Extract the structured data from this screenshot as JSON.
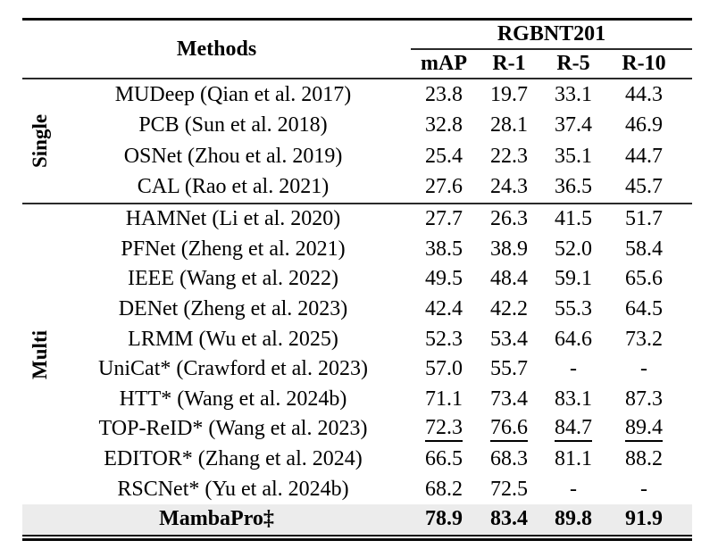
{
  "table": {
    "header": {
      "methods_label": "Methods",
      "dataset": "RGBNT201",
      "metrics": [
        "mAP",
        "R-1",
        "R-5",
        "R-10"
      ]
    },
    "groups": [
      {
        "label": "Single",
        "rows": [
          {
            "method": "MUDeep (Qian et al. 2017)",
            "values": [
              "23.8",
              "19.7",
              "33.1",
              "44.3"
            ],
            "underline": false
          },
          {
            "method": "PCB (Sun et al. 2018)",
            "values": [
              "32.8",
              "28.1",
              "37.4",
              "46.9"
            ],
            "underline": false
          },
          {
            "method": "OSNet (Zhou et al. 2019)",
            "values": [
              "25.4",
              "22.3",
              "35.1",
              "44.7"
            ],
            "underline": false
          },
          {
            "method": "CAL (Rao et al. 2021)",
            "values": [
              "27.6",
              "24.3",
              "36.5",
              "45.7"
            ],
            "underline": false
          }
        ]
      },
      {
        "label": "Multi",
        "rows": [
          {
            "method": "HAMNet (Li et al. 2020)",
            "values": [
              "27.7",
              "26.3",
              "41.5",
              "51.7"
            ],
            "underline": false
          },
          {
            "method": "PFNet (Zheng et al. 2021)",
            "values": [
              "38.5",
              "38.9",
              "52.0",
              "58.4"
            ],
            "underline": false
          },
          {
            "method": "IEEE (Wang et al. 2022)",
            "values": [
              "49.5",
              "48.4",
              "59.1",
              "65.6"
            ],
            "underline": false
          },
          {
            "method": "DENet (Zheng et al. 2023)",
            "values": [
              "42.4",
              "42.2",
              "55.3",
              "64.5"
            ],
            "underline": false
          },
          {
            "method": "LRMM (Wu et al. 2025)",
            "values": [
              "52.3",
              "53.4",
              "64.6",
              "73.2"
            ],
            "underline": false
          },
          {
            "method": "UniCat* (Crawford et al. 2023)",
            "values": [
              "57.0",
              "55.7",
              "-",
              "-"
            ],
            "underline": false
          },
          {
            "method": "HTT* (Wang et al. 2024b)",
            "values": [
              "71.1",
              "73.4",
              "83.1",
              "87.3"
            ],
            "underline": false
          },
          {
            "method": "TOP-ReID* (Wang et al. 2023)",
            "values": [
              "72.3",
              "76.6",
              "84.7",
              "89.4"
            ],
            "underline": true
          },
          {
            "method": "EDITOR* (Zhang et al. 2024)",
            "values": [
              "66.5",
              "68.3",
              "81.1",
              "88.2"
            ],
            "underline": false
          },
          {
            "method": "RSCNet* (Yu et al. 2024b)",
            "values": [
              "68.2",
              "72.5",
              "-",
              "-"
            ],
            "underline": false
          }
        ]
      }
    ],
    "highlight_row": {
      "method": "MambaPro‡",
      "values": [
        "78.9",
        "83.4",
        "89.8",
        "91.9"
      ]
    },
    "colors": {
      "highlight_bg": "#ececec",
      "rule": "#0a0a0a",
      "text": "#000000"
    }
  }
}
